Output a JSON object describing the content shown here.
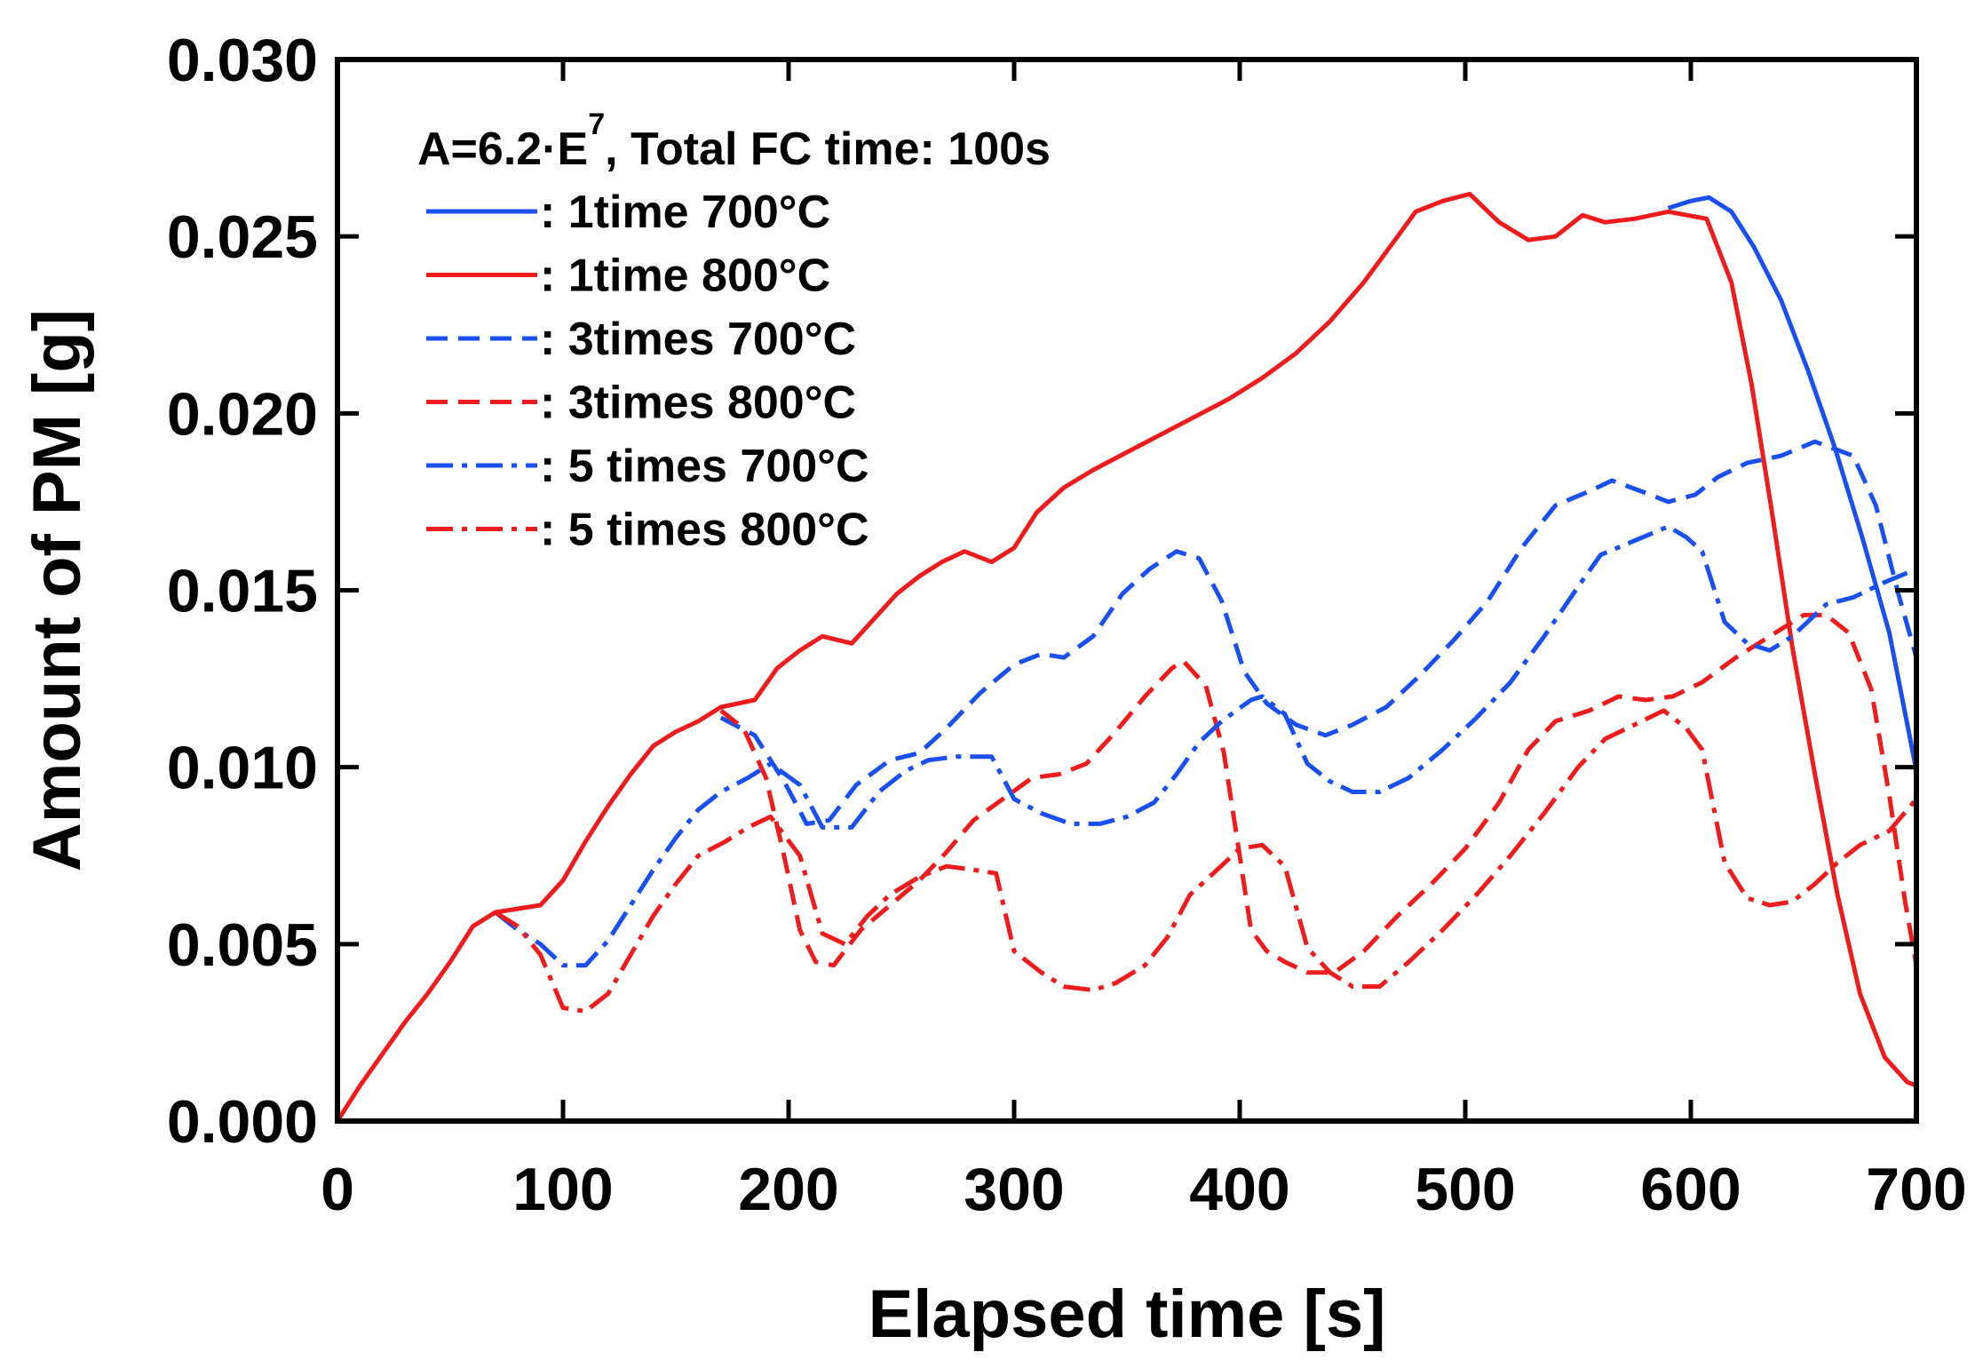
{
  "chart_data": {
    "type": "line",
    "title": "",
    "xlabel": "Elapsed time [s]",
    "ylabel": "Amount of PM [g]",
    "xlim": [
      0,
      700
    ],
    "ylim": [
      0,
      0.03
    ],
    "x_ticks": [
      0,
      100,
      200,
      300,
      400,
      500,
      600,
      700
    ],
    "x_tick_labels": [
      "0",
      "100",
      "200",
      "300",
      "400",
      "500",
      "600",
      "700"
    ],
    "y_ticks": [
      0,
      0.005,
      0.01,
      0.015,
      0.02,
      0.025,
      0.03
    ],
    "y_tick_labels": [
      "0.000",
      "0.005",
      "0.010",
      "0.015",
      "0.020",
      "0.025",
      "0.030"
    ],
    "grid": false,
    "legend_position": "top-left",
    "legend": {
      "title_main": "A=6.2·E",
      "title_superscript": "7",
      "title_rest": ",  Total FC time: 100s",
      "entries": [
        {
          "label": ": 1time   700°C",
          "series": 0
        },
        {
          "label": ": 1time   800°C",
          "series": 1
        },
        {
          "label": ": 3times 700°C",
          "series": 2
        },
        {
          "label": ": 3times 800°C",
          "series": 3
        },
        {
          "label": ": 5 times 700°C",
          "series": 4
        },
        {
          "label": ": 5 times 800°C",
          "series": 5
        }
      ]
    },
    "series": [
      {
        "name": "1time 700°C",
        "color": "#1a4ff0",
        "dash": "solid",
        "points": [
          [
            590,
            0.0258
          ],
          [
            600,
            0.026
          ],
          [
            608,
            0.0261
          ],
          [
            618,
            0.0257
          ],
          [
            628,
            0.0247
          ],
          [
            640,
            0.0232
          ],
          [
            652,
            0.0212
          ],
          [
            664,
            0.019
          ],
          [
            676,
            0.0165
          ],
          [
            688,
            0.0138
          ],
          [
            700,
            0.0099
          ]
        ]
      },
      {
        "name": "1time 800°C",
        "color": "#ee1c1c",
        "dash": "solid",
        "points": [
          [
            0,
            0
          ],
          [
            10,
            0.001
          ],
          [
            20,
            0.0019
          ],
          [
            30,
            0.0028
          ],
          [
            40,
            0.0036
          ],
          [
            50,
            0.0045
          ],
          [
            60,
            0.0055
          ],
          [
            70,
            0.0059
          ],
          [
            80,
            0.006
          ],
          [
            90,
            0.0061
          ],
          [
            100,
            0.0068
          ],
          [
            110,
            0.0079
          ],
          [
            120,
            0.0089
          ],
          [
            130,
            0.0098
          ],
          [
            140,
            0.0106
          ],
          [
            150,
            0.011
          ],
          [
            160,
            0.0113
          ],
          [
            170,
            0.0117
          ],
          [
            185,
            0.0119
          ],
          [
            195,
            0.0128
          ],
          [
            205,
            0.0133
          ],
          [
            215,
            0.0137
          ],
          [
            228,
            0.0135
          ],
          [
            238,
            0.0142
          ],
          [
            248,
            0.0149
          ],
          [
            258,
            0.0154
          ],
          [
            268,
            0.0158
          ],
          [
            278,
            0.0161
          ],
          [
            290,
            0.0158
          ],
          [
            300,
            0.0162
          ],
          [
            310,
            0.0172
          ],
          [
            322,
            0.0179
          ],
          [
            335,
            0.0184
          ],
          [
            350,
            0.0189
          ],
          [
            365,
            0.0194
          ],
          [
            380,
            0.0199
          ],
          [
            395,
            0.0204
          ],
          [
            410,
            0.021
          ],
          [
            425,
            0.0217
          ],
          [
            440,
            0.0226
          ],
          [
            455,
            0.0237
          ],
          [
            470,
            0.025
          ],
          [
            478,
            0.0257
          ],
          [
            490,
            0.026
          ],
          [
            502,
            0.0262
          ],
          [
            515,
            0.0254
          ],
          [
            528,
            0.0249
          ],
          [
            540,
            0.025
          ],
          [
            552,
            0.0256
          ],
          [
            562,
            0.0254
          ],
          [
            575,
            0.0255
          ],
          [
            590,
            0.0257
          ],
          [
            607,
            0.0255
          ],
          [
            618,
            0.0237
          ],
          [
            627,
            0.0208
          ],
          [
            636,
            0.0172
          ],
          [
            645,
            0.0134
          ],
          [
            655,
            0.0098
          ],
          [
            665,
            0.0064
          ],
          [
            675,
            0.0036
          ],
          [
            686,
            0.0018
          ],
          [
            696,
            0.0011
          ],
          [
            700,
            0.001
          ]
        ]
      },
      {
        "name": "3times 700°C",
        "color": "#1a4ff0",
        "dash": "dashed",
        "points": [
          [
            170,
            0.0114
          ],
          [
            185,
            0.0109
          ],
          [
            198,
            0.0096
          ],
          [
            208,
            0.0084
          ],
          [
            218,
            0.0085
          ],
          [
            230,
            0.0095
          ],
          [
            245,
            0.0102
          ],
          [
            258,
            0.0104
          ],
          [
            270,
            0.0111
          ],
          [
            285,
            0.0121
          ],
          [
            300,
            0.0129
          ],
          [
            312,
            0.0132
          ],
          [
            322,
            0.0131
          ],
          [
            335,
            0.0137
          ],
          [
            348,
            0.0149
          ],
          [
            360,
            0.0156
          ],
          [
            372,
            0.0161
          ],
          [
            382,
            0.0159
          ],
          [
            392,
            0.0147
          ],
          [
            402,
            0.0127
          ],
          [
            412,
            0.0118
          ],
          [
            425,
            0.0112
          ],
          [
            438,
            0.0109
          ],
          [
            450,
            0.0112
          ],
          [
            465,
            0.0117
          ],
          [
            480,
            0.0126
          ],
          [
            495,
            0.0136
          ],
          [
            510,
            0.0147
          ],
          [
            525,
            0.0162
          ],
          [
            540,
            0.0174
          ],
          [
            555,
            0.0178
          ],
          [
            565,
            0.0181
          ],
          [
            578,
            0.0178
          ],
          [
            590,
            0.0175
          ],
          [
            602,
            0.0177
          ],
          [
            612,
            0.0182
          ],
          [
            625,
            0.0186
          ],
          [
            640,
            0.0188
          ],
          [
            655,
            0.0192
          ],
          [
            672,
            0.0188
          ],
          [
            682,
            0.0174
          ],
          [
            692,
            0.0149
          ],
          [
            700,
            0.0131
          ]
        ]
      },
      {
        "name": "3times 800°C",
        "color": "#ee1c1c",
        "dash": "dashed",
        "points": [
          [
            170,
            0.0116
          ],
          [
            180,
            0.0111
          ],
          [
            190,
            0.0097
          ],
          [
            198,
            0.0075
          ],
          [
            205,
            0.0054
          ],
          [
            212,
            0.0045
          ],
          [
            220,
            0.0044
          ],
          [
            232,
            0.0054
          ],
          [
            245,
            0.0061
          ],
          [
            258,
            0.0068
          ],
          [
            270,
            0.0076
          ],
          [
            282,
            0.0085
          ],
          [
            295,
            0.0091
          ],
          [
            308,
            0.0097
          ],
          [
            320,
            0.0098
          ],
          [
            332,
            0.0101
          ],
          [
            345,
            0.011
          ],
          [
            358,
            0.012
          ],
          [
            370,
            0.0128
          ],
          [
            375,
            0.013
          ],
          [
            385,
            0.0123
          ],
          [
            393,
            0.0104
          ],
          [
            400,
            0.0075
          ],
          [
            405,
            0.0054
          ],
          [
            412,
            0.0048
          ],
          [
            420,
            0.0045
          ],
          [
            430,
            0.0042
          ],
          [
            442,
            0.0042
          ],
          [
            455,
            0.0048
          ],
          [
            470,
            0.0058
          ],
          [
            485,
            0.0067
          ],
          [
            500,
            0.0077
          ],
          [
            515,
            0.009
          ],
          [
            528,
            0.0105
          ],
          [
            540,
            0.0113
          ],
          [
            555,
            0.0116
          ],
          [
            568,
            0.012
          ],
          [
            580,
            0.0119
          ],
          [
            592,
            0.012
          ],
          [
            605,
            0.0124
          ],
          [
            620,
            0.0131
          ],
          [
            635,
            0.0137
          ],
          [
            650,
            0.0143
          ],
          [
            660,
            0.0143
          ],
          [
            670,
            0.0138
          ],
          [
            680,
            0.0122
          ],
          [
            688,
            0.0092
          ],
          [
            695,
            0.0062
          ],
          [
            700,
            0.0044
          ]
        ]
      },
      {
        "name": "5 times 700°C",
        "color": "#1a4ff0",
        "dash": "dashdot",
        "points": [
          [
            70,
            0.0059
          ],
          [
            80,
            0.0054
          ],
          [
            90,
            0.005
          ],
          [
            100,
            0.0044
          ],
          [
            110,
            0.0044
          ],
          [
            120,
            0.0051
          ],
          [
            130,
            0.0061
          ],
          [
            140,
            0.0071
          ],
          [
            150,
            0.008
          ],
          [
            160,
            0.0088
          ],
          [
            170,
            0.0093
          ],
          [
            182,
            0.0097
          ],
          [
            192,
            0.0101
          ],
          [
            205,
            0.0095
          ],
          [
            215,
            0.0083
          ],
          [
            228,
            0.0083
          ],
          [
            240,
            0.0093
          ],
          [
            252,
            0.0099
          ],
          [
            262,
            0.0102
          ],
          [
            275,
            0.0103
          ],
          [
            290,
            0.0103
          ],
          [
            300,
            0.0091
          ],
          [
            312,
            0.0087
          ],
          [
            325,
            0.0084
          ],
          [
            338,
            0.0084
          ],
          [
            350,
            0.0086
          ],
          [
            362,
            0.009
          ],
          [
            372,
            0.0098
          ],
          [
            382,
            0.0107
          ],
          [
            392,
            0.0113
          ],
          [
            405,
            0.0119
          ],
          [
            410,
            0.012
          ],
          [
            420,
            0.0115
          ],
          [
            430,
            0.0101
          ],
          [
            440,
            0.0096
          ],
          [
            450,
            0.0093
          ],
          [
            462,
            0.0093
          ],
          [
            475,
            0.0097
          ],
          [
            490,
            0.0105
          ],
          [
            505,
            0.0114
          ],
          [
            520,
            0.0124
          ],
          [
            535,
            0.0137
          ],
          [
            550,
            0.0151
          ],
          [
            560,
            0.016
          ],
          [
            575,
            0.0164
          ],
          [
            590,
            0.0168
          ],
          [
            598,
            0.0165
          ],
          [
            605,
            0.0161
          ],
          [
            615,
            0.0141
          ],
          [
            625,
            0.0135
          ],
          [
            635,
            0.0133
          ],
          [
            645,
            0.0137
          ],
          [
            660,
            0.0146
          ],
          [
            672,
            0.0148
          ],
          [
            685,
            0.0152
          ],
          [
            700,
            0.0156
          ]
        ]
      },
      {
        "name": "5 times 800°C",
        "color": "#ee1c1c",
        "dash": "dashdot",
        "points": [
          [
            70,
            0.0059
          ],
          [
            80,
            0.0055
          ],
          [
            90,
            0.0047
          ],
          [
            100,
            0.0032
          ],
          [
            110,
            0.0031
          ],
          [
            120,
            0.0036
          ],
          [
            130,
            0.0047
          ],
          [
            140,
            0.0058
          ],
          [
            150,
            0.0067
          ],
          [
            160,
            0.0075
          ],
          [
            172,
            0.0079
          ],
          [
            182,
            0.0083
          ],
          [
            192,
            0.0086
          ],
          [
            205,
            0.0075
          ],
          [
            215,
            0.0053
          ],
          [
            225,
            0.005
          ],
          [
            235,
            0.0058
          ],
          [
            245,
            0.0064
          ],
          [
            258,
            0.0069
          ],
          [
            270,
            0.0072
          ],
          [
            282,
            0.0071
          ],
          [
            292,
            0.007
          ],
          [
            300,
            0.0048
          ],
          [
            312,
            0.0042
          ],
          [
            322,
            0.0038
          ],
          [
            335,
            0.0037
          ],
          [
            345,
            0.0039
          ],
          [
            358,
            0.0044
          ],
          [
            368,
            0.0052
          ],
          [
            378,
            0.0064
          ],
          [
            390,
            0.0071
          ],
          [
            400,
            0.0077
          ],
          [
            410,
            0.0078
          ],
          [
            420,
            0.0072
          ],
          [
            430,
            0.0049
          ],
          [
            440,
            0.0042
          ],
          [
            450,
            0.0038
          ],
          [
            462,
            0.0038
          ],
          [
            475,
            0.0045
          ],
          [
            490,
            0.0054
          ],
          [
            505,
            0.0064
          ],
          [
            520,
            0.0075
          ],
          [
            535,
            0.0087
          ],
          [
            550,
            0.01
          ],
          [
            562,
            0.0108
          ],
          [
            575,
            0.0112
          ],
          [
            588,
            0.0116
          ],
          [
            598,
            0.0111
          ],
          [
            605,
            0.0105
          ],
          [
            615,
            0.0073
          ],
          [
            625,
            0.0063
          ],
          [
            635,
            0.0061
          ],
          [
            645,
            0.0062
          ],
          [
            655,
            0.0067
          ],
          [
            665,
            0.0073
          ],
          [
            675,
            0.0078
          ],
          [
            688,
            0.0082
          ],
          [
            700,
            0.0091
          ]
        ]
      }
    ]
  }
}
